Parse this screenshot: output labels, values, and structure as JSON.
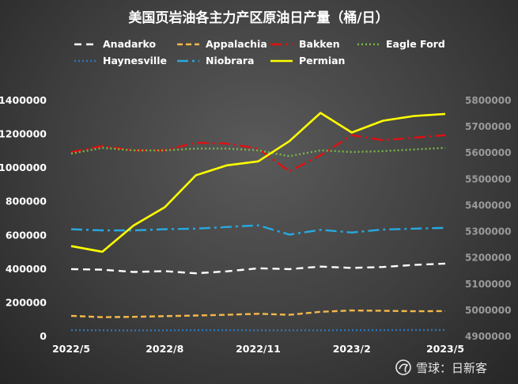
{
  "chart_data": {
    "type": "line",
    "title": "美国页岩油各主力产区原油日产量（桶/日）",
    "x": [
      "2022/5",
      "2022/6",
      "2022/7",
      "2022/8",
      "2022/9",
      "2022/10",
      "2022/11",
      "2022/12",
      "2023/1",
      "2023/2",
      "2023/3",
      "2023/4",
      "2023/5"
    ],
    "x_tick_labels": [
      "2022/5",
      "2022/8",
      "2022/11",
      "2023/2",
      "2023/5"
    ],
    "y_left": {
      "ticks": [
        "0",
        "200000",
        "400000",
        "600000",
        "800000",
        "1000000",
        "1200000",
        "1400000"
      ],
      "ylim": [
        0,
        1400000
      ]
    },
    "y_right": {
      "ticks": [
        "4900000",
        "5000000",
        "5100000",
        "5200000",
        "5300000",
        "5400000",
        "5500000",
        "5600000",
        "5700000",
        "5800000"
      ],
      "ylim": [
        4900000,
        5800000
      ]
    },
    "grid": false,
    "legend": "top",
    "series": [
      {
        "name": "Anadarko",
        "axis": "left",
        "color": "#ffffff",
        "dash": "9 6",
        "values": [
          395000,
          392000,
          378000,
          383000,
          370000,
          382000,
          400000,
          395000,
          410000,
          402000,
          408000,
          420000,
          428000
        ]
      },
      {
        "name": "Appalachia",
        "axis": "left",
        "color": "#f4b84a",
        "dash": "7 4",
        "values": [
          118000,
          110000,
          112000,
          116000,
          120000,
          124000,
          130000,
          124000,
          142000,
          150000,
          148000,
          145000,
          146000
        ]
      },
      {
        "name": "Bakken",
        "axis": "left",
        "color": "#e01010",
        "dash": "14 5 3 5",
        "values": [
          1090000,
          1125000,
          1100000,
          1100000,
          1145000,
          1140000,
          1110000,
          975000,
          1070000,
          1190000,
          1160000,
          1175000,
          1190000
        ]
      },
      {
        "name": "Eagle Ford",
        "axis": "left",
        "color": "#7ab648",
        "dash": "2 3",
        "values": [
          1080000,
          1115000,
          1100000,
          1100000,
          1110000,
          1110000,
          1100000,
          1065000,
          1100000,
          1090000,
          1095000,
          1105000,
          1115000
        ]
      },
      {
        "name": "Haynesville",
        "axis": "left",
        "color": "#2e75b6",
        "dash": "2 3",
        "values": [
          33000,
          32000,
          31000,
          32000,
          33000,
          33000,
          32000,
          32000,
          32000,
          33000,
          33000,
          34000,
          34000
        ]
      },
      {
        "name": "Niobrara",
        "axis": "left",
        "color": "#27a9e1",
        "dash": "14 5 3 5",
        "values": [
          632000,
          625000,
          625000,
          632000,
          635000,
          645000,
          655000,
          600000,
          628000,
          612000,
          630000,
          635000,
          640000
        ]
      },
      {
        "name": "Permian",
        "axis": "right",
        "color": "#ffff00",
        "dash": "",
        "values": [
          5242000,
          5220000,
          5320000,
          5390000,
          5512000,
          5550000,
          5565000,
          5642000,
          5750000,
          5675000,
          5720000,
          5738000,
          5746000
        ]
      }
    ]
  },
  "watermark": {
    "text": "雪球：日新客"
  }
}
